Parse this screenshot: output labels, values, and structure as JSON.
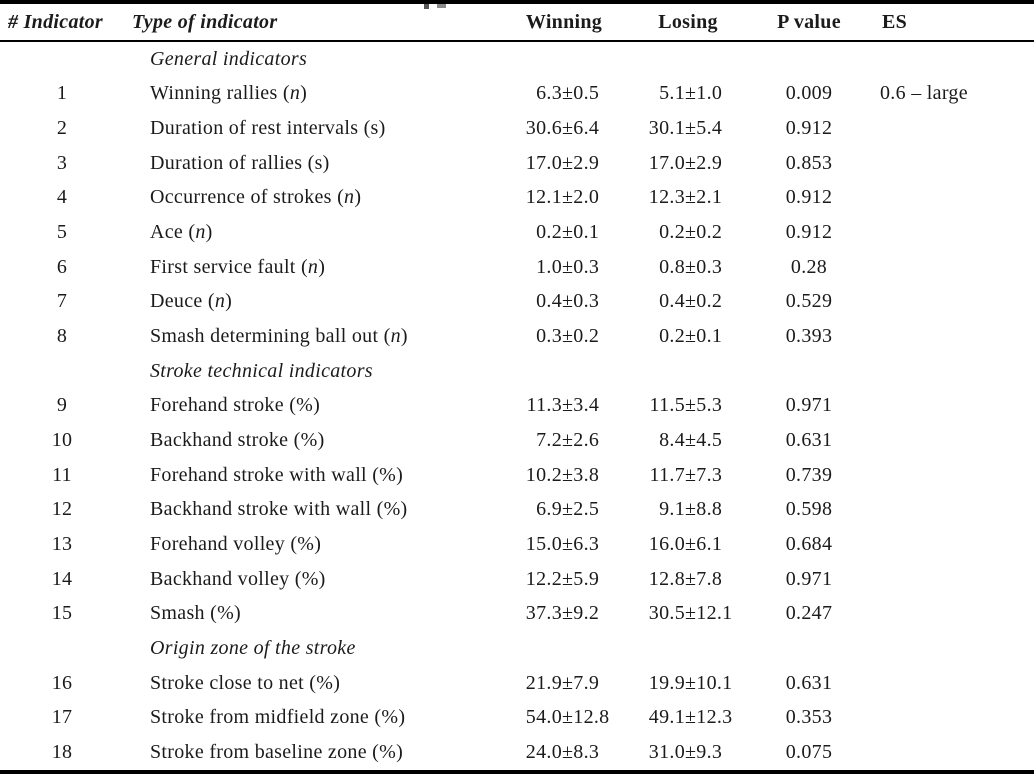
{
  "table": {
    "headers": [
      {
        "id": "num",
        "label": "# Indicator"
      },
      {
        "id": "type",
        "label": "Type of indicator"
      },
      {
        "id": "win",
        "label": "Winning"
      },
      {
        "id": "lose",
        "label": "Losing"
      },
      {
        "id": "pvalue",
        "label": "P value"
      },
      {
        "id": "es",
        "label": "ES"
      }
    ],
    "rows": [
      {
        "section": "General indicators"
      },
      {
        "num": "1",
        "indicator": "Winning rallies (n)",
        "winning": "6.3±0.5",
        "losing": "5.1±1.0",
        "p": "0.009",
        "es": "0.6 – large"
      },
      {
        "num": "2",
        "indicator": "Duration of rest intervals (s)",
        "winning": "30.6±6.4",
        "losing": "30.1±5.4",
        "p": "0.912",
        "es": ""
      },
      {
        "num": "3",
        "indicator": "Duration of rallies (s)",
        "winning": "17.0±2.9",
        "losing": "17.0±2.9",
        "p": "0.853",
        "es": ""
      },
      {
        "num": "4",
        "indicator": "Occurrence of strokes (n)",
        "winning": "12.1±2.0",
        "losing": "12.3±2.1",
        "p": "0.912",
        "es": ""
      },
      {
        "num": "5",
        "indicator": "Ace (n)",
        "winning": "0.2±0.1",
        "losing": "0.2±0.2",
        "p": "0.912",
        "es": ""
      },
      {
        "num": "6",
        "indicator": "First service fault (n)",
        "winning": "1.0±0.3",
        "losing": "0.8±0.3",
        "p": "0.28",
        "es": ""
      },
      {
        "num": "7",
        "indicator": "Deuce (n)",
        "winning": "0.4±0.3",
        "losing": "0.4±0.2",
        "p": "0.529",
        "es": ""
      },
      {
        "num": "8",
        "indicator": "Smash determining ball out (n)",
        "winning": "0.3±0.2",
        "losing": "0.2±0.1",
        "p": "0.393",
        "es": ""
      },
      {
        "section": "Stroke technical indicators"
      },
      {
        "num": "9",
        "indicator": "Forehand stroke (%)",
        "winning": "11.3±3.4",
        "losing": "11.5±5.3",
        "p": "0.971",
        "es": ""
      },
      {
        "num": "10",
        "indicator": "Backhand stroke (%)",
        "winning": "7.2±2.6",
        "losing": "8.4±4.5",
        "p": "0.631",
        "es": ""
      },
      {
        "num": "11",
        "indicator": "Forehand stroke with wall (%)",
        "winning": "10.2±3.8",
        "losing": "11.7±7.3",
        "p": "0.739",
        "es": ""
      },
      {
        "num": "12",
        "indicator": "Backhand stroke with wall (%)",
        "winning": "6.9±2.5",
        "losing": "9.1±8.8",
        "p": "0.598",
        "es": ""
      },
      {
        "num": "13",
        "indicator": "Forehand volley (%)",
        "winning": "15.0±6.3",
        "losing": "16.0±6.1",
        "p": "0.684",
        "es": ""
      },
      {
        "num": "14",
        "indicator": "Backhand volley (%)",
        "winning": "12.2±5.9",
        "losing": "12.8±7.8",
        "p": "0.971",
        "es": ""
      },
      {
        "num": "15",
        "indicator": "Smash (%)",
        "winning": "37.3±9.2",
        "losing": "30.5±12.1",
        "p": "0.247",
        "es": ""
      },
      {
        "section": "Origin zone of the stroke"
      },
      {
        "num": "16",
        "indicator": "Stroke close to net (%)",
        "winning": "21.9±7.9",
        "losing": "19.9±10.1",
        "p": "0.631",
        "es": ""
      },
      {
        "num": "17",
        "indicator": "Stroke from midfield zone (%)",
        "winning": "54.0±12.8",
        "losing": "49.1±12.3",
        "p": "0.353",
        "es": ""
      },
      {
        "num": "18",
        "indicator": "Stroke from baseline zone (%)",
        "winning": "24.0±8.3",
        "losing": "31.0±9.3",
        "p": "0.075",
        "es": ""
      }
    ]
  }
}
